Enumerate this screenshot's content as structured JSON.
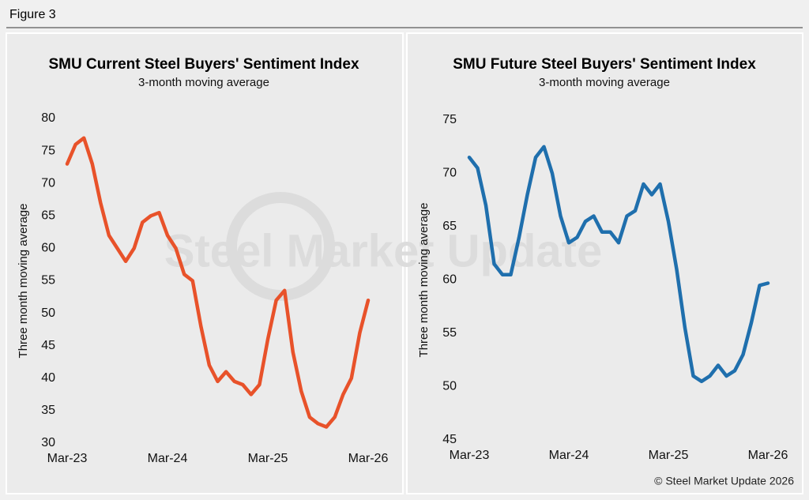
{
  "figure_label": "Figure 3",
  "watermark": "Steel Market Update",
  "copyright": "© Steel Market Update 2026",
  "chart_data": [
    {
      "type": "line",
      "title": "SMU Current Steel Buyers' Sentiment Index",
      "subtitle": "3-month moving average",
      "y_label": "Three month moving average",
      "x": [
        "Mar-23",
        "Apr-23",
        "May-23",
        "Jun-23",
        "Jul-23",
        "Aug-23",
        "Sep-23",
        "Oct-23",
        "Nov-23",
        "Dec-23",
        "Jan-24",
        "Feb-24",
        "Mar-24",
        "Apr-24",
        "May-24",
        "Jun-24",
        "Jul-24",
        "Aug-24",
        "Sep-24",
        "Oct-24",
        "Nov-24",
        "Dec-24",
        "Jan-25",
        "Feb-25",
        "Mar-25",
        "Apr-25",
        "May-25",
        "Jun-25",
        "Jul-25",
        "Aug-25",
        "Sep-25",
        "Oct-25",
        "Nov-25",
        "Dec-25",
        "Jan-26",
        "Feb-26",
        "Mar-26"
      ],
      "xticks": [
        "Mar-23",
        "Mar-24",
        "Mar-25",
        "Mar-26"
      ],
      "series": [
        {
          "name": "Current",
          "color": "#e8522a",
          "values": [
            73,
            76,
            77,
            73,
            67,
            62,
            60,
            58,
            60,
            64,
            65,
            65.5,
            62,
            60,
            56,
            55,
            48,
            42,
            39.5,
            41,
            39.5,
            39,
            37.5,
            39,
            46,
            52,
            53.5,
            44,
            38,
            34,
            33,
            32.5,
            34,
            37.5,
            40,
            47,
            52
          ]
        }
      ],
      "ylim": [
        30,
        80
      ],
      "yticks": [
        30,
        35,
        40,
        45,
        50,
        55,
        60,
        65,
        70,
        75,
        80
      ]
    },
    {
      "type": "line",
      "title": "SMU Future Steel Buyers' Sentiment Index",
      "subtitle": "3-month moving average",
      "y_label": "Three month moving average",
      "x": [
        "Mar-23",
        "Apr-23",
        "May-23",
        "Jun-23",
        "Jul-23",
        "Aug-23",
        "Sep-23",
        "Oct-23",
        "Nov-23",
        "Dec-23",
        "Jan-24",
        "Feb-24",
        "Mar-24",
        "Apr-24",
        "May-24",
        "Jun-24",
        "Jul-24",
        "Aug-24",
        "Sep-24",
        "Oct-24",
        "Nov-24",
        "Dec-24",
        "Jan-25",
        "Feb-25",
        "Mar-25",
        "Apr-25",
        "May-25",
        "Jun-25",
        "Jul-25",
        "Aug-25",
        "Sep-25",
        "Oct-25",
        "Nov-25",
        "Dec-25",
        "Jan-26",
        "Feb-26",
        "Mar-26"
      ],
      "xticks": [
        "Mar-23",
        "Mar-24",
        "Mar-25",
        "Mar-26"
      ],
      "series": [
        {
          "name": "Future",
          "color": "#1f6fad",
          "values": [
            71.5,
            70.5,
            67,
            61.5,
            60.5,
            60.5,
            64,
            68,
            71.5,
            72.5,
            70,
            66,
            63.5,
            64,
            65.5,
            66,
            64.5,
            64.5,
            63.5,
            66,
            66.5,
            69,
            68,
            69,
            65.5,
            61,
            55.5,
            51,
            50.5,
            51,
            52,
            51,
            51.5,
            53,
            56,
            59.5,
            59.7
          ]
        }
      ],
      "ylim": [
        45,
        75
      ],
      "yticks": [
        45,
        50,
        55,
        60,
        65,
        70,
        75
      ]
    }
  ]
}
